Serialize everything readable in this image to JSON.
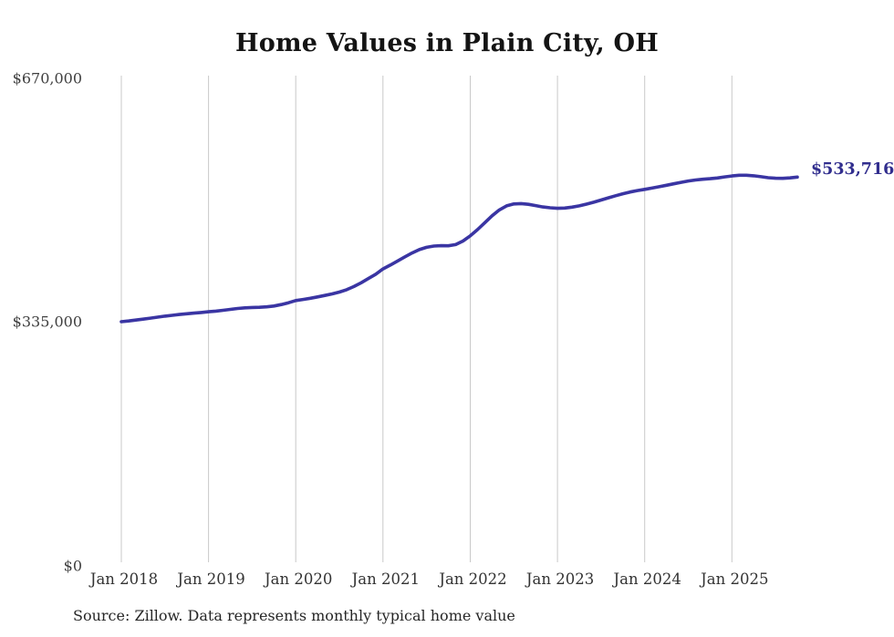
{
  "title": "Home Values in Plain City, OH",
  "source_note": "Source: Zillow. Data represents monthly typical home value",
  "end_label": "$533,716",
  "colors": {
    "line": "#3a35a3",
    "end_label": "#312e8e",
    "grid": "#c9c9c9",
    "title_text": "#141414",
    "axis_text": "#3f3f3f",
    "background": "#ffffff"
  },
  "chart_data": {
    "type": "line",
    "title": "Home Values in Plain City, OH",
    "xlabel": "",
    "ylabel": "",
    "ylim": [
      0,
      670000
    ],
    "grid": "vertical-only",
    "legend": "none",
    "x_start_month": "Jan 2018",
    "x_end_month": "Oct 2025",
    "y_ticks": [
      {
        "label": "$0",
        "value": 0
      },
      {
        "label": "$335,000",
        "value": 335000
      },
      {
        "label": "$670,000",
        "value": 670000
      }
    ],
    "x_ticks": [
      {
        "label": "Jan 2018",
        "index": 0
      },
      {
        "label": "Jan 2019",
        "index": 12
      },
      {
        "label": "Jan 2020",
        "index": 24
      },
      {
        "label": "Jan 2021",
        "index": 36
      },
      {
        "label": "Jan 2022",
        "index": 48
      },
      {
        "label": "Jan 2023",
        "index": 60
      },
      {
        "label": "Jan 2024",
        "index": 72
      },
      {
        "label": "Jan 2025",
        "index": 84
      }
    ],
    "series": [
      {
        "name": "Monthly typical home value",
        "final_value": 533716,
        "values": [
          335000,
          336000,
          337200,
          338500,
          339900,
          341300,
          342600,
          343800,
          344900,
          345900,
          346800,
          347700,
          348600,
          349500,
          350600,
          351900,
          353100,
          354000,
          354500,
          354800,
          355400,
          356600,
          358500,
          361000,
          364000,
          365600,
          367200,
          369100,
          371100,
          373200,
          375700,
          379000,
          383300,
          388500,
          394300,
          400200,
          407500,
          412800,
          418400,
          424000,
          429400,
          434000,
          437200,
          438900,
          439400,
          439300,
          440900,
          445800,
          453000,
          461500,
          471000,
          480500,
          488500,
          494200,
          496800,
          497300,
          496300,
          494500,
          492700,
          491500,
          490800,
          491200,
          492400,
          494200,
          496500,
          499200,
          502200,
          505200,
          508100,
          510800,
          513200,
          515200,
          516800,
          518600,
          520500,
          522500,
          524500,
          526500,
          528300,
          529700,
          530700,
          531500,
          532500,
          534000,
          535300,
          536200,
          536300,
          535500,
          534200,
          532900,
          532100,
          532000,
          532600,
          533716
        ]
      }
    ]
  }
}
